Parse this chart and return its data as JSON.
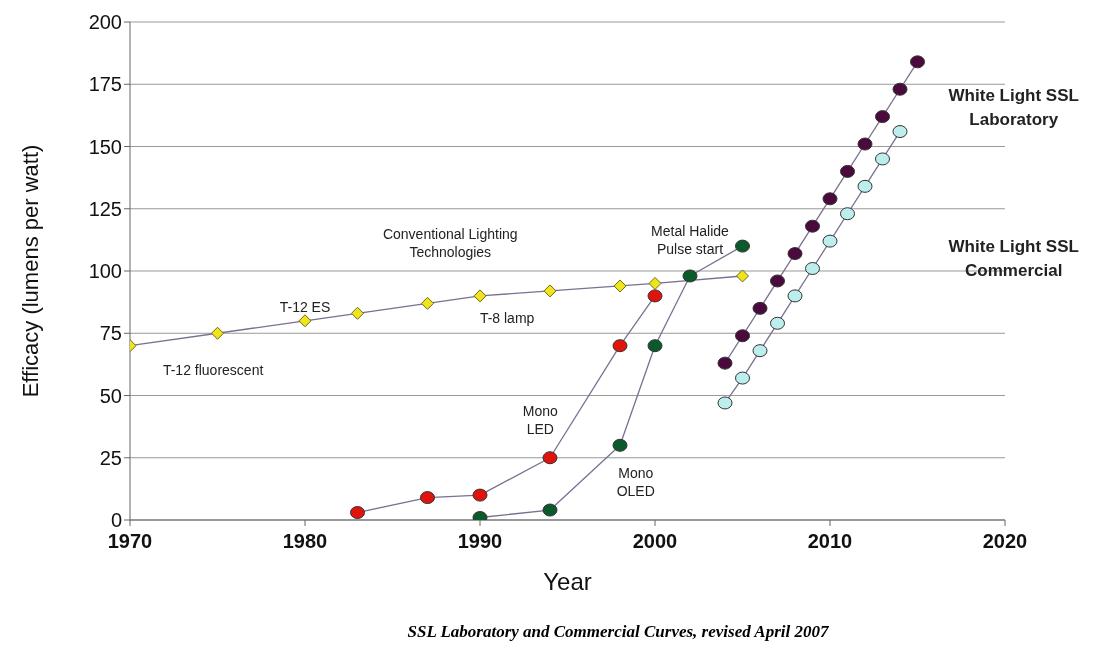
{
  "chart_data": {
    "type": "line",
    "xlabel": "Year",
    "ylabel": "Efficacy (lumens per watt)",
    "xlim": [
      1970,
      2020
    ],
    "xticks": [
      1970,
      1980,
      1990,
      2000,
      2010,
      2020
    ],
    "ylim": [
      0,
      200
    ],
    "yticks": [
      0,
      25,
      50,
      75,
      100,
      125,
      150,
      175,
      200
    ],
    "grid": "y",
    "line_style": "solid",
    "series": [
      {
        "color": "#f0e51a",
        "marker": "diamond",
        "x": [
          1970,
          1975,
          1980,
          1983,
          1987,
          1990,
          1994,
          1998,
          2000,
          2005
        ],
        "values": [
          70,
          75,
          80,
          83,
          87,
          90,
          92,
          94,
          95,
          98
        ]
      },
      {
        "color": "#e0140c",
        "marker": "circle",
        "x": [
          1983,
          1987,
          1990,
          1994,
          1998,
          2000
        ],
        "values": [
          3,
          9,
          10,
          25,
          70,
          90
        ]
      },
      {
        "color": "#0b5a2c",
        "marker": "circle",
        "x": [
          1990,
          1994,
          1998,
          2000,
          2002,
          2005
        ],
        "values": [
          1,
          4,
          30,
          70,
          98,
          110
        ]
      },
      {
        "color": "#4a0a3e",
        "marker": "circle",
        "x": [
          2004,
          2005,
          2006,
          2007,
          2008,
          2009,
          2010,
          2011,
          2012,
          2013,
          2014,
          2015
        ],
        "values": [
          63,
          74,
          85,
          96,
          107,
          118,
          129,
          140,
          151,
          162,
          173,
          184
        ]
      },
      {
        "color": "#bdeeee",
        "marker": "circle",
        "x": [
          2004,
          2005,
          2006,
          2007,
          2008,
          2009,
          2010,
          2011,
          2012,
          2013,
          2014
        ],
        "values": [
          47,
          57,
          68,
          79,
          90,
          101,
          112,
          123,
          134,
          145,
          156
        ]
      }
    ],
    "annotations": [
      "T-12 fluorescent",
      "T-12 ES",
      "Conventional Lighting\nTechnologies",
      "T-8 lamp",
      "Metal Halide\nPulse start",
      "Mono\nLED",
      "Mono\nOLED",
      "White Light SSL\nLaboratory",
      "White Light SSL\nCommercial",
      "SSL Laboratory and Commercial Curves, revised April 2007"
    ]
  }
}
